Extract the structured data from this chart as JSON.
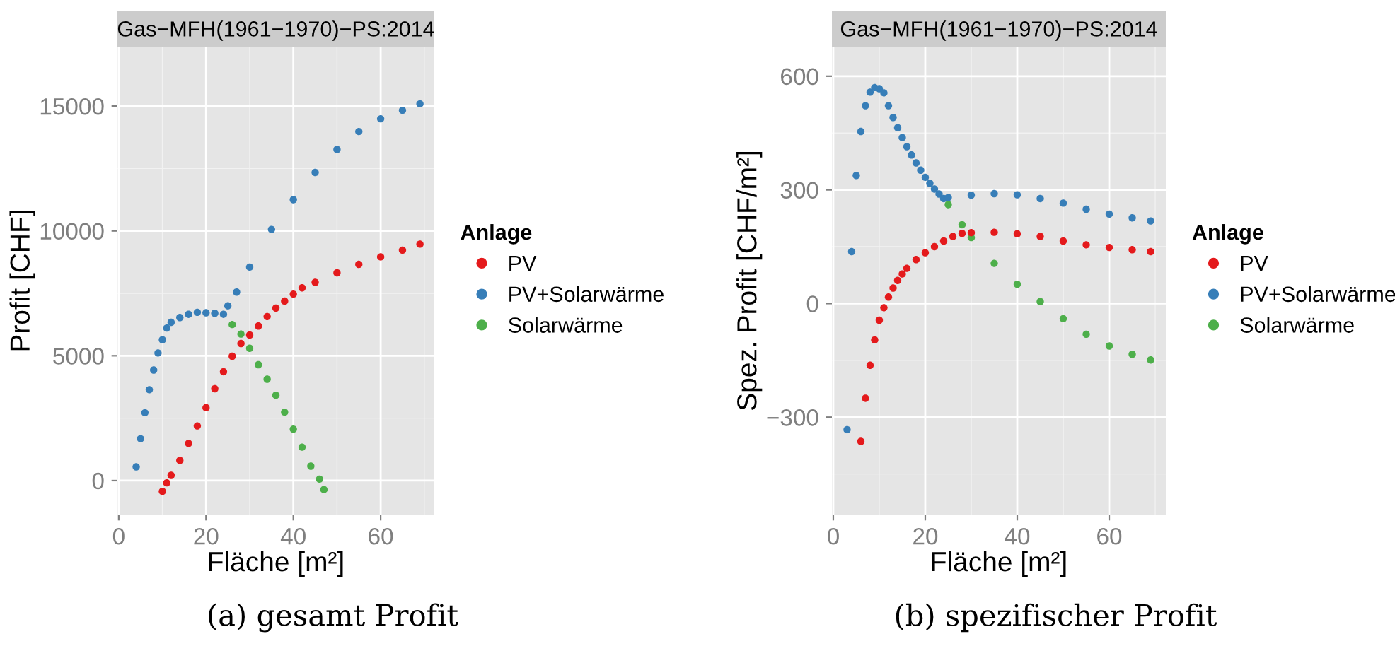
{
  "chart_data": [
    {
      "type": "scatter",
      "title": "Gas−MFH(1961−1970)−PS:2014",
      "xlabel": "Fläche [m²]",
      "ylabel": "Profit [CHF]",
      "legend_title": "Anlage",
      "legend": "right",
      "marker": "circle",
      "grid": true,
      "xlim": [
        -0.3,
        72.3
      ],
      "xticks": [
        0,
        20,
        40,
        60
      ],
      "ylim": [
        -1360,
        17380
      ],
      "yticks": [
        0,
        5000,
        10000,
        15000
      ],
      "series": [
        {
          "name": "PV",
          "color": "#e41a1c",
          "x": [
            10,
            11,
            12,
            14,
            16,
            18,
            20,
            22,
            24,
            26,
            28,
            30,
            32,
            34,
            36,
            38,
            40,
            42,
            45,
            50,
            55,
            60,
            65,
            69
          ],
          "values": [
            -430,
            -90,
            210,
            810,
            1490,
            2190,
            2920,
            3680,
            4360,
            4980,
            5490,
            5830,
            6190,
            6570,
            6910,
            7190,
            7470,
            7720,
            7940,
            8320,
            8660,
            8960,
            9230,
            9470
          ]
        },
        {
          "name": "PV+Solarwärme",
          "color": "#377eb8",
          "x": [
            4,
            5,
            6,
            7,
            8,
            9,
            10,
            11,
            12,
            14,
            16,
            18,
            20,
            22,
            24,
            25,
            27,
            30,
            35,
            40,
            45,
            50,
            55,
            60,
            65,
            69
          ],
          "values": [
            550,
            1680,
            2720,
            3640,
            4430,
            5110,
            5640,
            6110,
            6340,
            6530,
            6660,
            6740,
            6720,
            6700,
            6660,
            7000,
            7550,
            8550,
            10060,
            11250,
            12340,
            13260,
            13980,
            14490,
            14830,
            15090
          ]
        },
        {
          "name": "Solarwärme",
          "color": "#4daf4a",
          "x": [
            26,
            28,
            30,
            32,
            34,
            36,
            38,
            40,
            42,
            44,
            46,
            47
          ],
          "values": [
            6250,
            5870,
            5300,
            4640,
            4060,
            3420,
            2740,
            2060,
            1340,
            580,
            60,
            -360
          ]
        }
      ],
      "annotations": [
        "(a) gesamt Profit"
      ]
    },
    {
      "type": "scatter",
      "title": "Gas−MFH(1961−1970)−PS:2014",
      "xlabel": "Fläche [m²]",
      "ylabel": "Spez. Profit [CHF/m²]",
      "legend_title": "Anlage",
      "legend": "right",
      "marker": "circle",
      "grid": true,
      "xlim": [
        -0.3,
        72.3
      ],
      "xticks": [
        0,
        20,
        40,
        60
      ],
      "ylim": [
        -557,
        678
      ],
      "yticks": [
        {
          "value": -300,
          "label": "−300"
        },
        0,
        300,
        600
      ],
      "series": [
        {
          "name": "PV",
          "color": "#e41a1c",
          "x": [
            6,
            7,
            8,
            9,
            10,
            11,
            12,
            13,
            14,
            15,
            16,
            18,
            20,
            22,
            24,
            26,
            28,
            30,
            35,
            40,
            45,
            50,
            55,
            60,
            65,
            69
          ],
          "values": [
            -364,
            -250,
            -163,
            -96,
            -44,
            -11,
            17,
            41,
            61,
            78,
            93,
            116,
            134,
            150,
            165,
            177,
            185,
            187,
            188,
            184,
            177,
            165,
            155,
            148,
            142,
            137
          ]
        },
        {
          "name": "PV+Solarwärme",
          "color": "#377eb8",
          "x": [
            3,
            4,
            5,
            6,
            7,
            8,
            9,
            10,
            11,
            12,
            13,
            14,
            15,
            16,
            17,
            18,
            19,
            20,
            21,
            22,
            23,
            24,
            25,
            30,
            35,
            40,
            45,
            50,
            55,
            60,
            65,
            69
          ],
          "values": [
            -333,
            137,
            338,
            454,
            522,
            558,
            570,
            567,
            556,
            522,
            491,
            464,
            438,
            414,
            392,
            371,
            352,
            333,
            317,
            302,
            289,
            277,
            280,
            286,
            290,
            287,
            277,
            265,
            249,
            236,
            226,
            218
          ]
        },
        {
          "name": "Solarwärme",
          "color": "#4daf4a",
          "x": [
            25,
            28,
            30,
            35,
            40,
            45,
            50,
            55,
            60,
            65,
            69
          ],
          "values": [
            261,
            208,
            174,
            106,
            51,
            5,
            -40,
            -81,
            -112,
            -134,
            -149
          ]
        }
      ],
      "annotations": [
        "(b) spezifischer Profit"
      ]
    }
  ]
}
